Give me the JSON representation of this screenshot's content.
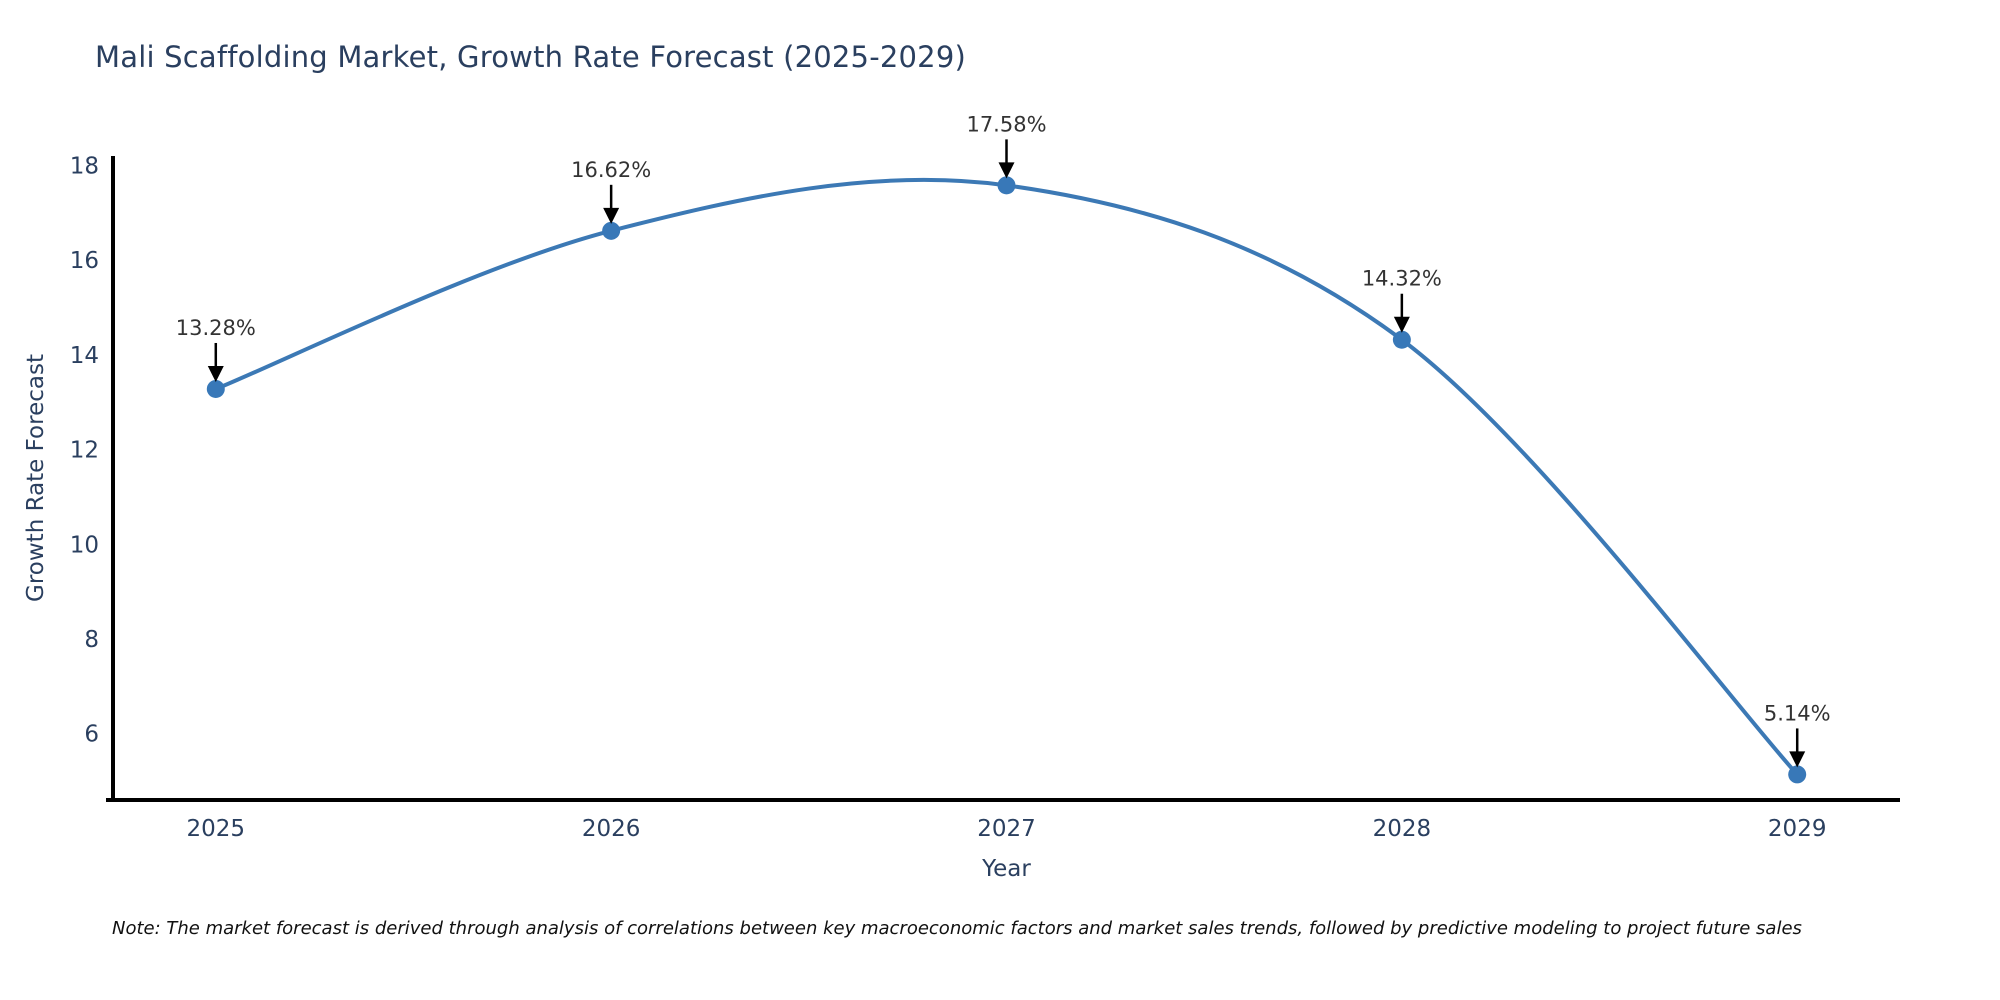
{
  "chart_data": {
    "type": "line",
    "title": "Mali Scaffolding Market, Growth Rate Forecast (2025-2029)",
    "xlabel": "Year",
    "ylabel": "Growth Rate Forecast",
    "x": [
      2025,
      2026,
      2027,
      2028,
      2029
    ],
    "series": [
      {
        "name": "Growth Rate Forecast",
        "values": [
          13.28,
          16.62,
          17.58,
          14.32,
          5.14
        ],
        "point_labels": [
          "13.28%",
          "16.62%",
          "17.58%",
          "14.32%",
          "5.14%"
        ]
      }
    ],
    "xtick_labels": [
      "2025",
      "2026",
      "2027",
      "2028",
      "2029"
    ],
    "ytick_values": [
      6,
      8,
      10,
      12,
      14,
      16,
      18
    ],
    "ylim": [
      4.6,
      18.2
    ],
    "xlim": [
      2024.74,
      2029.26
    ],
    "grid": false,
    "legend_position": "none",
    "line_shape": "spline",
    "marker": "circle",
    "annotations": "value labels above each point with downward black arrows",
    "colors": {
      "line": "#3c79b5",
      "marker": "#3878b8",
      "axis": "#000000",
      "tick_text": "#2a3f5f",
      "annotation_text": "#333333",
      "annotation_arrow": "#000000",
      "background": "#ffffff"
    }
  },
  "note": {
    "text": "Note: The market forecast is derived through analysis of correlations between key macroeconomic factors and market sales trends, followed by predictive modeling to project future sales"
  }
}
